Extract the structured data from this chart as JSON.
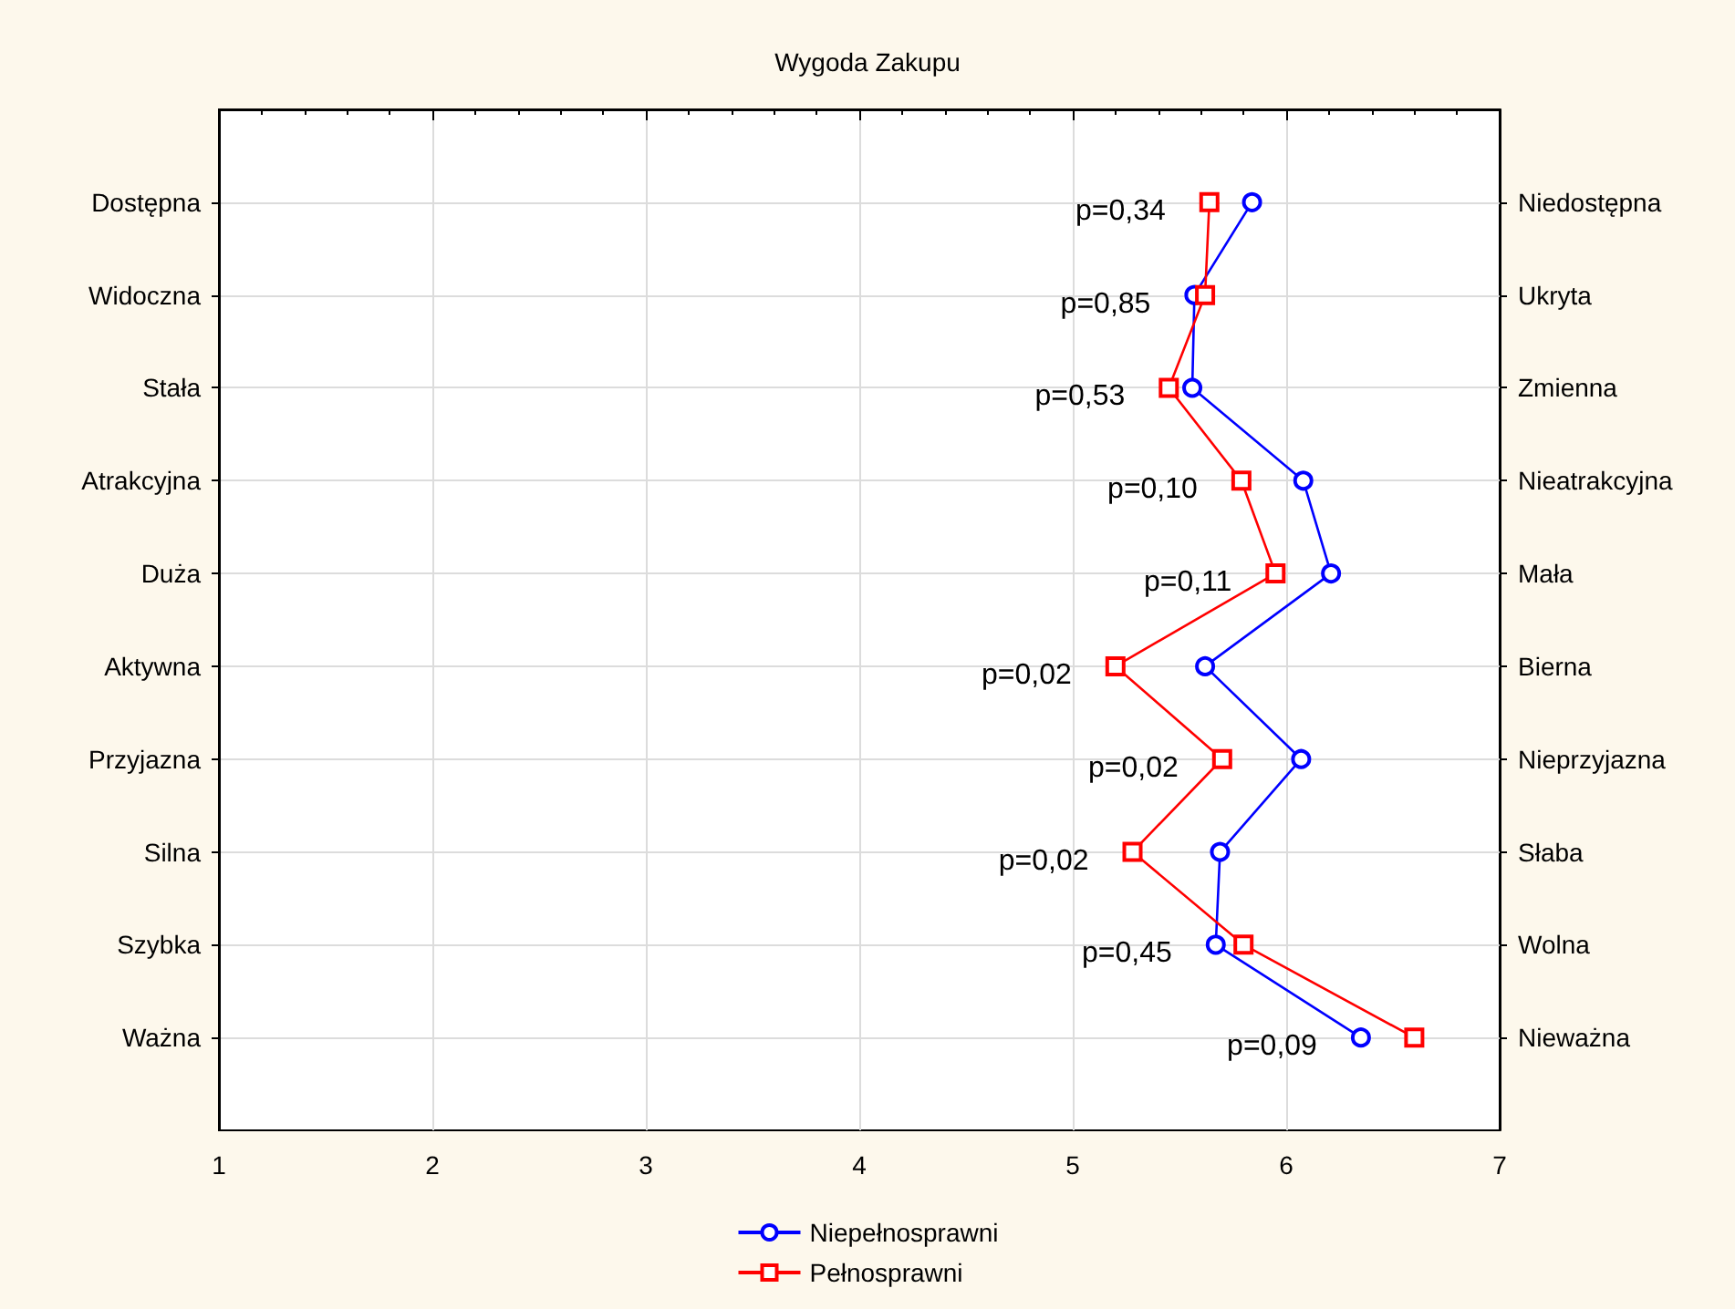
{
  "chart_data": {
    "type": "line",
    "orientation": "horizontal",
    "title": "Wygoda Zakupu",
    "categories": [
      "Dostępna",
      "Widoczna",
      "Stała",
      "Atrakcyjna",
      "Duża",
      "Aktywna",
      "Przyjazna",
      "Silna",
      "Szybka",
      "Ważna"
    ],
    "y2_categories": [
      "Niedostępna",
      "Ukryta",
      "Zmienna",
      "Nieatrakcyjna",
      "Mała",
      "Bierna",
      "Nieprzyjazna",
      "Słaba",
      "Wolna",
      "Nieważna"
    ],
    "series": [
      {
        "name": "Niepełnosprawni",
        "color": "#0000ff",
        "marker": "circle",
        "values": [
          5.84,
          5.57,
          5.56,
          6.08,
          6.21,
          5.62,
          6.07,
          5.69,
          5.67,
          6.35
        ]
      },
      {
        "name": "Pełnosprawni",
        "color": "#ff0000",
        "marker": "square",
        "values": [
          5.64,
          5.62,
          5.45,
          5.79,
          5.95,
          5.2,
          5.7,
          5.28,
          5.8,
          6.6
        ]
      }
    ],
    "xlim": [
      1,
      7
    ],
    "xticks": [
      1,
      2,
      3,
      4,
      5,
      6,
      7
    ],
    "grid": true,
    "legend": "bottom",
    "line_style": "solid",
    "annotations": [
      "p=0,34",
      "p=0,85",
      "p=0,53",
      "p=0,10",
      "p=0,11",
      "p=0,02",
      "p=0,02",
      "p=0,02",
      "p=0,45",
      "p=0,09"
    ]
  }
}
